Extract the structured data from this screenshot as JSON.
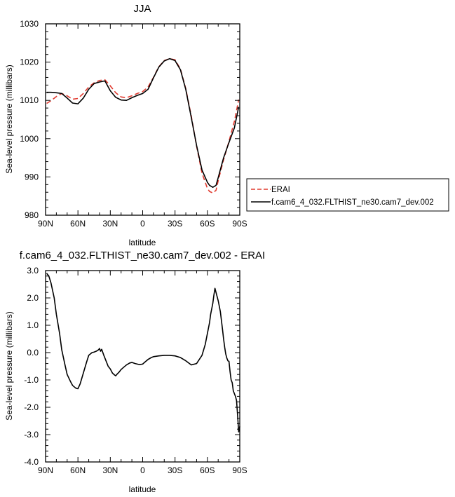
{
  "chart_data": [
    {
      "type": "line",
      "title": "JJA",
      "xlabel": "latitude",
      "ylabel": "Sea-level pressure (millibars)",
      "xlim": [
        -90,
        90
      ],
      "ylim": [
        980,
        1030
      ],
      "x_ticks": [
        -90,
        -60,
        -30,
        0,
        30,
        60,
        90
      ],
      "x_tick_labels": [
        "90N",
        "60N",
        "30N",
        "0",
        "30S",
        "60S",
        "90S"
      ],
      "y_ticks": [
        980,
        990,
        1000,
        1010,
        1020,
        1030
      ],
      "y_tick_labels": [
        "980",
        "990",
        "1000",
        "1010",
        "1020",
        "1030"
      ],
      "grid": false,
      "legend": {
        "placement": "outside-right",
        "entries": [
          {
            "label": "ERAI",
            "color": "#e03a2f",
            "style": "dashed"
          },
          {
            "label": "f.cam6_4_032.FLTHIST_ne30.cam7_dev.002",
            "color": "#000000",
            "style": "solid"
          }
        ]
      },
      "series": [
        {
          "name": "ERAI",
          "color": "#e03a2f",
          "style": "dashed",
          "x": [
            -89,
            -85,
            -80,
            -75,
            -70,
            -65,
            -60,
            -55,
            -50,
            -45,
            -40,
            -35,
            -30,
            -25,
            -20,
            -15,
            -10,
            -5,
            0,
            5,
            10,
            15,
            20,
            25,
            30,
            35,
            40,
            45,
            50,
            55,
            60,
            62,
            65,
            68,
            70,
            75,
            80,
            85,
            89
          ],
          "y": [
            1009.2,
            1009.9,
            1011.0,
            1011.8,
            1011.2,
            1010.3,
            1010.5,
            1011.8,
            1013.5,
            1014.6,
            1015.2,
            1015.4,
            1013.8,
            1012.0,
            1010.9,
            1010.7,
            1011.2,
            1011.8,
            1012.3,
            1013.5,
            1016.0,
            1018.8,
            1020.4,
            1020.9,
            1020.6,
            1018.2,
            1013.0,
            1006.0,
            998.0,
            991.0,
            987.0,
            986.2,
            985.8,
            986.5,
            989.0,
            994.5,
            999.3,
            1004.5,
            1010.2
          ]
        },
        {
          "name": "f.cam6_4_032.FLTHIST_ne30.cam7_dev.002",
          "color": "#000000",
          "style": "solid",
          "x": [
            -89,
            -85,
            -80,
            -75,
            -70,
            -65,
            -60,
            -55,
            -50,
            -45,
            -40,
            -35,
            -30,
            -25,
            -20,
            -15,
            -10,
            -5,
            0,
            5,
            10,
            15,
            20,
            25,
            30,
            35,
            40,
            45,
            50,
            55,
            60,
            62,
            65,
            68,
            70,
            75,
            80,
            85,
            89
          ],
          "y": [
            1012.1,
            1012.1,
            1012.0,
            1011.8,
            1010.6,
            1009.3,
            1009.1,
            1010.6,
            1012.9,
            1014.4,
            1014.8,
            1015.1,
            1012.5,
            1010.8,
            1010.1,
            1010.0,
            1010.7,
            1011.3,
            1011.8,
            1012.9,
            1015.9,
            1018.7,
            1020.3,
            1020.9,
            1020.4,
            1018.0,
            1012.8,
            1005.6,
            998.2,
            991.8,
            988.6,
            987.8,
            987.3,
            987.8,
            989.8,
            995.0,
            999.0,
            1002.8,
            1008.3
          ]
        }
      ]
    },
    {
      "type": "line",
      "title": "f.cam6_4_032.FLTHIST_ne30.cam7_dev.002 - ERAI",
      "xlabel": "latitude",
      "ylabel": "Sea-level pressure (millibars)",
      "xlim": [
        -90,
        90
      ],
      "ylim": [
        -4.0,
        3.0
      ],
      "x_ticks": [
        -90,
        -60,
        -30,
        0,
        30,
        60,
        90
      ],
      "x_tick_labels": [
        "90N",
        "60N",
        "30N",
        "0",
        "30S",
        "60S",
        "90S"
      ],
      "y_ticks": [
        -4,
        -3,
        -2,
        -1,
        0,
        1,
        2,
        3
      ],
      "y_tick_labels": [
        "-4.0",
        "-3.0",
        "-2.0",
        "-1.0",
        "0.0",
        "1.0",
        "2.0",
        "3.0"
      ],
      "grid": false,
      "series": [
        {
          "color": "#000000",
          "style": "solid",
          "x": [
            -89,
            -87,
            -85,
            -82,
            -80,
            -77,
            -75,
            -72,
            -70,
            -67,
            -65,
            -62,
            -60,
            -58,
            -55,
            -52,
            -50,
            -47,
            -45,
            -43,
            -41,
            -40,
            -39,
            -38,
            -36,
            -34,
            -32,
            -30,
            -28,
            -26,
            -25,
            -24,
            -22,
            -20,
            -18,
            -15,
            -12,
            -10,
            -7,
            -5,
            -3,
            0,
            2,
            5,
            8,
            10,
            15,
            20,
            25,
            30,
            35,
            40,
            45,
            50,
            55,
            58,
            60,
            62,
            63,
            64,
            65,
            66,
            67,
            68,
            70,
            72,
            74,
            75,
            76,
            77,
            78,
            79,
            80,
            81,
            82,
            83,
            84,
            85,
            86,
            87,
            88,
            89,
            90
          ],
          "y": [
            2.9,
            2.8,
            2.55,
            2.0,
            1.4,
            0.7,
            0.1,
            -0.45,
            -0.8,
            -1.05,
            -1.2,
            -1.3,
            -1.32,
            -1.15,
            -0.75,
            -0.35,
            -0.1,
            0.0,
            0.02,
            0.05,
            0.1,
            0.15,
            0.05,
            0.12,
            -0.1,
            -0.3,
            -0.5,
            -0.6,
            -0.75,
            -0.82,
            -0.85,
            -0.8,
            -0.72,
            -0.62,
            -0.55,
            -0.45,
            -0.38,
            -0.36,
            -0.4,
            -0.42,
            -0.44,
            -0.42,
            -0.35,
            -0.25,
            -0.18,
            -0.15,
            -0.12,
            -0.1,
            -0.1,
            -0.12,
            -0.18,
            -0.3,
            -0.45,
            -0.4,
            -0.1,
            0.3,
            0.7,
            1.1,
            1.4,
            1.6,
            1.8,
            2.1,
            2.35,
            2.2,
            1.9,
            1.5,
            0.85,
            0.5,
            0.2,
            -0.05,
            -0.2,
            -0.3,
            -0.32,
            -0.7,
            -1.0,
            -1.1,
            -1.4,
            -1.5,
            -1.6,
            -1.75,
            -2.3,
            -2.9,
            -2.7
          ]
        }
      ]
    }
  ]
}
